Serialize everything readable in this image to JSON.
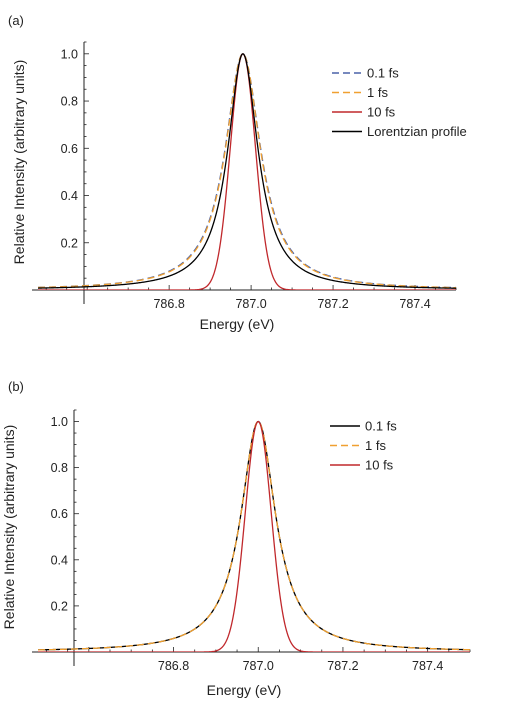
{
  "colors": {
    "series_0_1fs_a": "#4a62a8",
    "series_1fs": "#f0a030",
    "series_10fs": "#c0282c",
    "lorentzian": "#000000",
    "series_0_1fs_b": "#000000",
    "axis": "#222222"
  },
  "chart_data": [
    {
      "type": "line",
      "panel_label": "(a)",
      "xlabel": "Energy  (eV)",
      "ylabel": "Relative Intensity (arbitrary units)",
      "xlim": [
        786.48,
        787.5
      ],
      "ylim": [
        0,
        1.05
      ],
      "xticks": [
        "786.8",
        "787.0",
        "787.2",
        "787.4"
      ],
      "yticks": [
        "0.2",
        "0.4",
        "0.6",
        "0.8",
        "1.0"
      ],
      "grid": false,
      "legend_position": "top-right",
      "center": 786.98,
      "series": [
        {
          "name": "0.1 fs",
          "style": "dashed",
          "color": "#4a62a8",
          "profile": "lorentzian",
          "fwhm": 0.106
        },
        {
          "name": "1 fs",
          "style": "dashed",
          "color": "#f0a030",
          "profile": "lorentzian",
          "fwhm": 0.104
        },
        {
          "name": "10 fs",
          "style": "solid",
          "color": "#c0282c",
          "profile": "gaussian",
          "fwhm": 0.072
        },
        {
          "name": "Lorentzian profile",
          "style": "solid",
          "color": "#000000",
          "profile": "lorentzian",
          "fwhm": 0.09
        }
      ]
    },
    {
      "type": "line",
      "panel_label": "(b)",
      "xlabel": "Energy  (eV)",
      "ylabel": "Relative Intensity (arbitrary units)",
      "xlim": [
        786.48,
        787.5
      ],
      "ylim": [
        0,
        1.05
      ],
      "xticks": [
        "786.8",
        "787.0",
        "787.2",
        "787.4"
      ],
      "yticks": [
        "0.2",
        "0.4",
        "0.6",
        "0.8",
        "1.0"
      ],
      "grid": false,
      "legend_position": "top-right",
      "center": 787.0,
      "series": [
        {
          "name": "0.1 fs",
          "style": "solid",
          "color": "#000000",
          "profile": "lorentzian",
          "fwhm": 0.1
        },
        {
          "name": "1 fs",
          "style": "dashed",
          "color": "#f0a030",
          "profile": "lorentzian",
          "fwhm": 0.1
        },
        {
          "name": "10 fs",
          "style": "solid",
          "color": "#c0282c",
          "profile": "gaussian",
          "fwhm": 0.072
        }
      ]
    }
  ]
}
